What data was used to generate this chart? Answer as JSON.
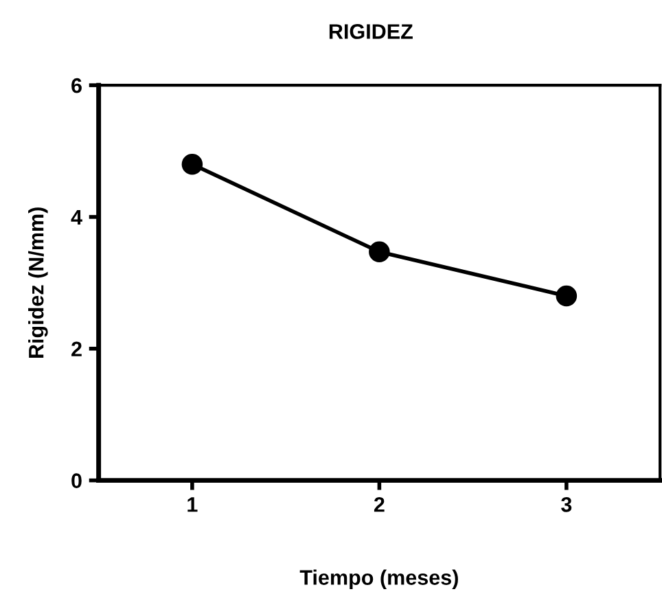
{
  "chart_data": {
    "type": "line",
    "title": "RIGIDEZ",
    "xlabel": "Tiempo (meses)",
    "ylabel": "Rigidez (N/mm)",
    "x": [
      1,
      2,
      3
    ],
    "series": [
      {
        "color": "#000000",
        "values": [
          4.8,
          3.47,
          2.8
        ]
      }
    ],
    "xlim": [
      0.5,
      3.5
    ],
    "xticks": [
      1,
      2,
      3
    ],
    "ylim": [
      0,
      6
    ],
    "yticks": [
      0,
      2,
      4,
      6
    ],
    "marker": "circle",
    "line_style": "solid",
    "grid": false,
    "legend": false
  }
}
